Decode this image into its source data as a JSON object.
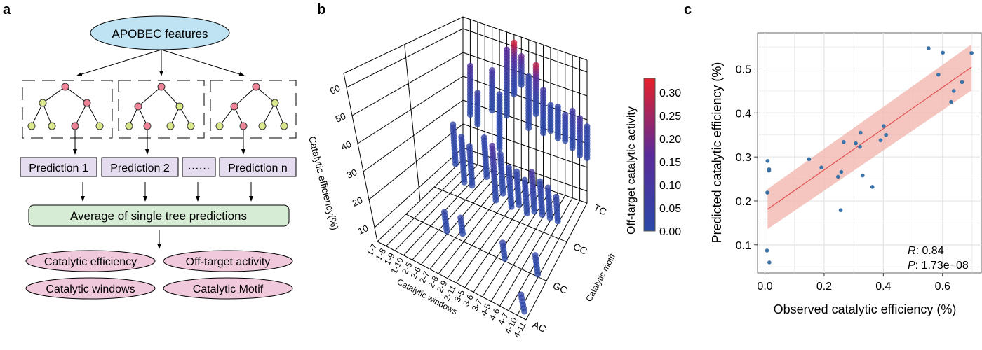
{
  "panel_a": {
    "label": "a",
    "input": "APOBEC features",
    "predictions": [
      "Prediction 1",
      "Prediction 2",
      "······",
      "Prediction n"
    ],
    "average": "Average of single tree predictions",
    "outputs": [
      "Catalytic efficiency",
      "Off-target activity",
      "Catalytic windows",
      "Catalytic Motif"
    ],
    "colors": {
      "input": "#bfe3f2",
      "prediction": "#e6dcef",
      "average": "#d6ecd4",
      "output": "#f1c9dc",
      "node_pink": "#ee8296",
      "node_yellow": "#dbe88c"
    }
  },
  "chart_data": [
    {
      "panel": "b",
      "type": "scatter3d",
      "zlabel": "Catalytic efficiency(%)",
      "xlabel": "Catalytic windows",
      "ylabel": "Catalytic motif",
      "x_categories": [
        "1-7",
        "1-8",
        "1-9",
        "1-10",
        "2-5",
        "2-6",
        "2-7",
        "2-8",
        "2-9",
        "2-11",
        "3-5",
        "3-6",
        "3-7",
        "4-5",
        "4-6",
        "4-7",
        "4-10",
        "4-11"
      ],
      "y_categories": [
        "AC",
        "GC",
        "CC",
        "TC"
      ],
      "z_ticks": [
        10,
        20,
        30,
        40,
        50,
        60
      ],
      "colorbar": {
        "label": "Off-target catalytic activity",
        "ticks": [
          "0.00",
          "0.05",
          "0.10",
          "0.15",
          "0.20",
          "0.25",
          "0.30"
        ],
        "range": [
          0,
          0.33
        ],
        "colors": [
          "#2a4aa8",
          "#5a2a9a",
          "#e8202a"
        ]
      },
      "columns": [
        {
          "window": "1-8",
          "motif": "TC",
          "z": [
            25,
            46
          ],
          "off": 0.12
        },
        {
          "window": "1-9",
          "motif": "TC",
          "z": [
            22,
            36
          ],
          "off": 0.05
        },
        {
          "window": "2-5",
          "motif": "TC",
          "z": [
            30,
            48
          ],
          "off": 0.1
        },
        {
          "window": "2-6",
          "motif": "TC",
          "z": [
            15,
            38
          ],
          "off": 0.02
        },
        {
          "window": "2-7",
          "motif": "TC",
          "z": [
            30,
            58
          ],
          "off": 0.15
        },
        {
          "window": "2-8",
          "motif": "TC",
          "z": [
            40,
            62
          ],
          "off": 0.3
        },
        {
          "window": "2-9",
          "motif": "TC",
          "z": [
            45,
            58
          ],
          "off": 0.2
        },
        {
          "window": "2-11",
          "motif": "TC",
          "z": [
            28,
            50
          ],
          "off": 0.02
        },
        {
          "window": "3-5",
          "motif": "TC",
          "z": [
            35,
            56
          ],
          "off": 0.28
        },
        {
          "window": "3-6",
          "motif": "TC",
          "z": [
            28,
            47
          ],
          "off": 0.08
        },
        {
          "window": "3-7",
          "motif": "TC",
          "z": [
            30,
            42
          ],
          "off": 0.02
        },
        {
          "window": "4-5",
          "motif": "TC",
          "z": [
            28,
            42
          ],
          "off": 0.02
        },
        {
          "window": "4-6",
          "motif": "TC",
          "z": [
            28,
            40
          ],
          "off": 0.05
        },
        {
          "window": "4-7",
          "motif": "TC",
          "z": [
            26,
            42
          ],
          "off": 0.08
        },
        {
          "window": "4-10",
          "motif": "TC",
          "z": [
            24,
            40
          ],
          "off": 0.1
        },
        {
          "window": "4-11",
          "motif": "TC",
          "z": [
            24,
            38
          ],
          "off": 0.02
        },
        {
          "window": "1-10",
          "motif": "CC",
          "z": [
            18,
            34
          ],
          "off": 0.02
        },
        {
          "window": "2-5",
          "motif": "CC",
          "z": [
            12,
            30
          ],
          "off": 0.02
        },
        {
          "window": "2-6",
          "motif": "CC",
          "z": [
            12,
            28
          ],
          "off": 0.02
        },
        {
          "window": "2-8",
          "motif": "CC",
          "z": [
            18,
            34
          ],
          "off": 0.02
        },
        {
          "window": "2-9",
          "motif": "CC",
          "z": [
            10,
            32
          ],
          "off": 0.12
        },
        {
          "window": "2-11",
          "motif": "CC",
          "z": [
            14,
            30
          ],
          "off": 0.02
        },
        {
          "window": "3-5",
          "motif": "CC",
          "z": [
            10,
            26
          ],
          "off": 0.02
        },
        {
          "window": "3-6",
          "motif": "CC",
          "z": [
            12,
            26
          ],
          "off": 0.02
        },
        {
          "window": "3-7",
          "motif": "CC",
          "z": [
            10,
            24
          ],
          "off": 0.02
        },
        {
          "window": "4-5",
          "motif": "CC",
          "z": [
            12,
            28
          ],
          "off": 0.1
        },
        {
          "window": "4-6",
          "motif": "CC",
          "z": [
            12,
            26
          ],
          "off": 0.02
        },
        {
          "window": "4-7",
          "motif": "CC",
          "z": [
            12,
            24
          ],
          "off": 0.02
        },
        {
          "window": "4-10",
          "motif": "CC",
          "z": [
            12,
            22
          ],
          "off": 0.02
        },
        {
          "window": "2-6",
          "motif": "GC",
          "z": [
            6,
            14
          ],
          "off": 0.02
        },
        {
          "window": "2-8",
          "motif": "GC",
          "z": [
            8,
            14
          ],
          "off": 0.02
        },
        {
          "window": "3-7",
          "motif": "GC",
          "z": [
            6,
            12
          ],
          "off": 0.02
        },
        {
          "window": "4-10",
          "motif": "GC",
          "z": [
            6,
            14
          ],
          "off": 0.02
        },
        {
          "window": "4-11",
          "motif": "AC",
          "z": [
            8,
            14
          ],
          "off": 0.02
        }
      ]
    },
    {
      "panel": "c",
      "type": "scatter",
      "xlabel": "Observed catalytic efficiency (%)",
      "ylabel": "Predicted catalytic efficiency (%)",
      "xlim": [
        -0.025,
        0.731
      ],
      "ylim": [
        0.036,
        0.582
      ],
      "x_ticks": [
        "0.0",
        "0.2",
        "0.4",
        "0.6"
      ],
      "x_tick_values": [
        0,
        0.2,
        0.4,
        0.6
      ],
      "y_ticks": [
        "0.1",
        "0.2",
        "0.3",
        "0.4",
        "0.5"
      ],
      "y_tick_values": [
        0.1,
        0.2,
        0.3,
        0.4,
        0.5
      ],
      "grid": true,
      "point_color": "#3a72a8",
      "fit_color": "#e05050",
      "band_color": "#f2b8b0",
      "points": [
        [
          0.553,
          0.547
        ],
        [
          0.601,
          0.537
        ],
        [
          0.698,
          0.536
        ],
        [
          0.586,
          0.487
        ],
        [
          0.666,
          0.47
        ],
        [
          0.638,
          0.45
        ],
        [
          0.629,
          0.425
        ],
        [
          0.401,
          0.37
        ],
        [
          0.409,
          0.35
        ],
        [
          0.391,
          0.338
        ],
        [
          0.323,
          0.355
        ],
        [
          0.307,
          0.331
        ],
        [
          0.321,
          0.323
        ],
        [
          0.266,
          0.334
        ],
        [
          0.149,
          0.295
        ],
        [
          0.191,
          0.276
        ],
        [
          0.258,
          0.266
        ],
        [
          0.247,
          0.255
        ],
        [
          0.33,
          0.258
        ],
        [
          0.363,
          0.232
        ],
        [
          0.256,
          0.179
        ],
        [
          0.009,
          0.291
        ],
        [
          0.014,
          0.272
        ],
        [
          0.014,
          0.269
        ],
        [
          0.008,
          0.219
        ],
        [
          0.007,
          0.087
        ],
        [
          0.015,
          0.06
        ]
      ],
      "fit": {
        "x": [
          0.009,
          0.698
        ],
        "y": [
          0.181,
          0.504
        ],
        "band_upper": [
          0.227,
          0.556
        ],
        "band_lower": [
          0.136,
          0.451
        ]
      },
      "annotation": {
        "r_label": "R",
        "r_value": ": 0.84",
        "p_label": "P",
        "p_value": ": 1.73e−08"
      }
    }
  ],
  "panel_b": {
    "label": "b"
  },
  "panel_c": {
    "label": "c"
  }
}
